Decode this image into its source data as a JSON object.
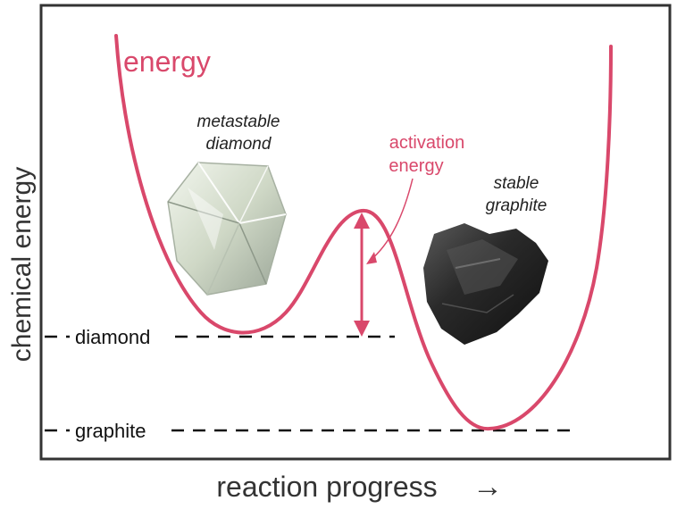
{
  "colors": {
    "curve": "#d9486b",
    "frame": "#333333",
    "text": "#222222",
    "dash": "#111111"
  },
  "labels": {
    "curve_label": "energy",
    "y_axis": "chemical energy",
    "x_axis": "reaction progress",
    "x_arrow": "→",
    "diamond_level": "diamond",
    "graphite_level": "graphite",
    "activation_line1": "activation",
    "activation_line2": "energy",
    "diamond_caption_line1": "metastable",
    "diamond_caption_line2": "diamond",
    "graphite_caption_line1": "stable",
    "graphite_caption_line2": "graphite"
  },
  "images": {
    "diamond_photo": "diamond-crystal",
    "graphite_photo": "graphite-lump"
  }
}
